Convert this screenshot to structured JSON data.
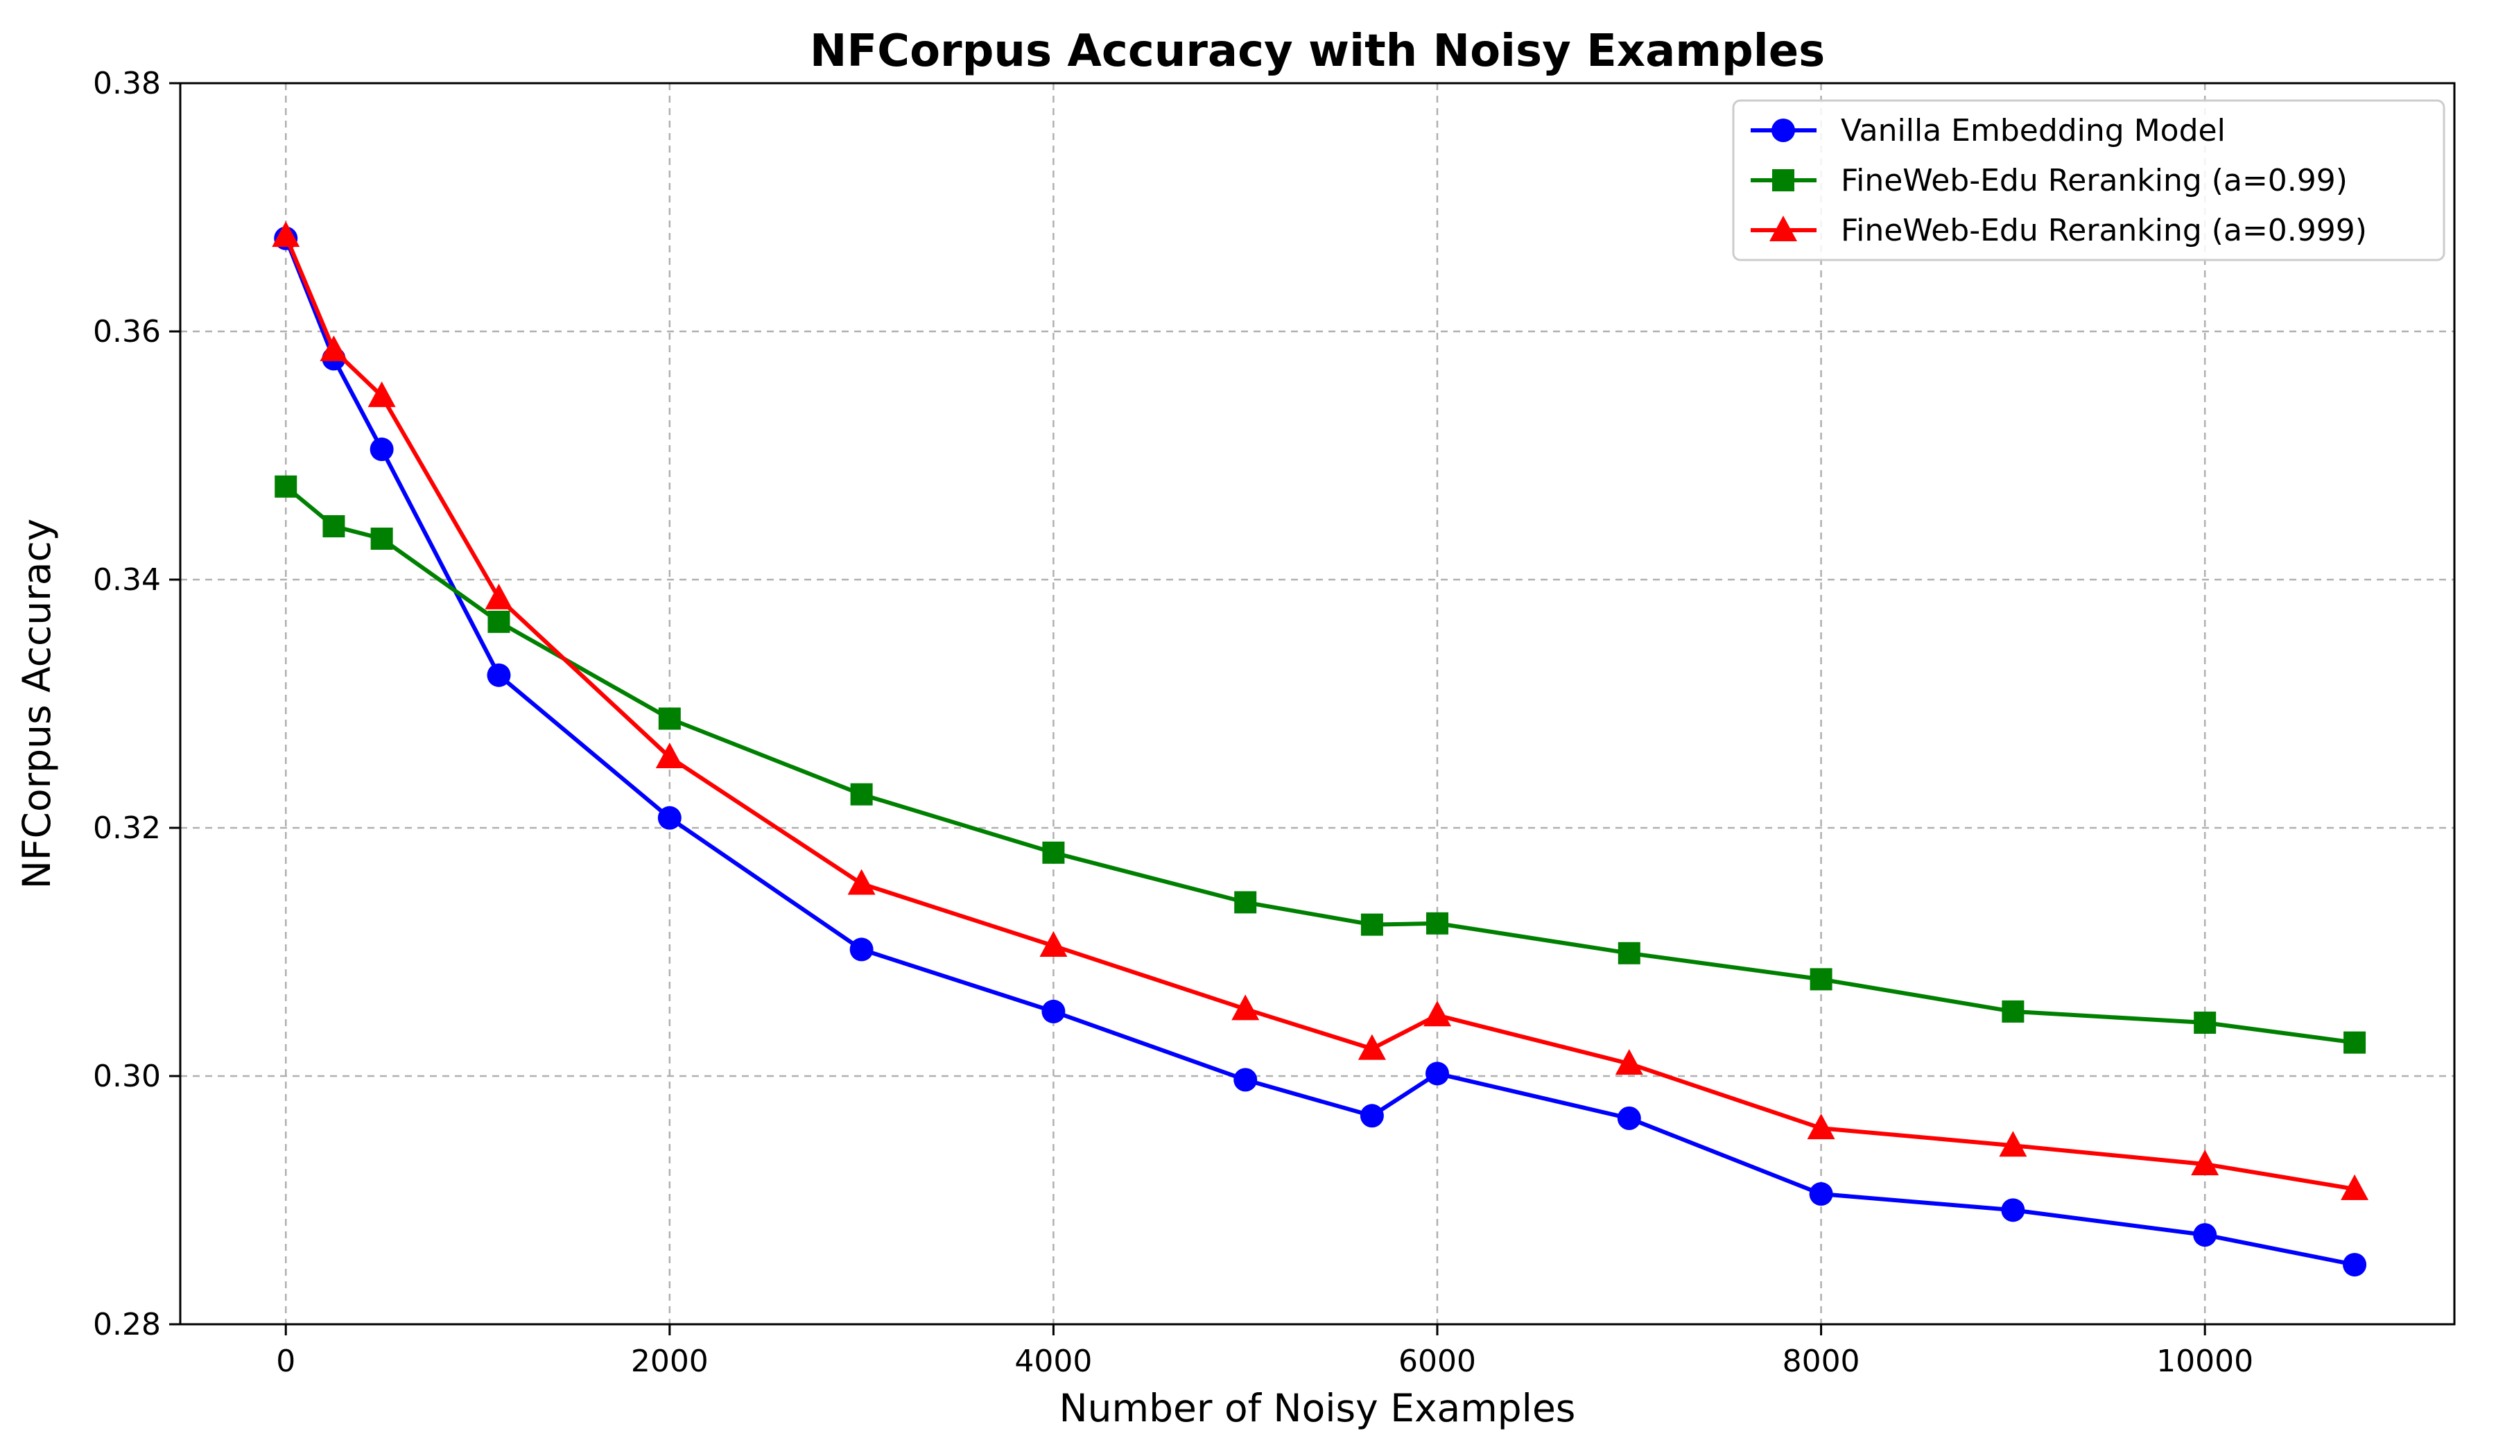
{
  "chart_data": {
    "type": "line",
    "title": "NFCorpus Accuracy with Noisy Examples",
    "xlabel": "Number of Noisy Examples",
    "ylabel": "NFCorpus Accuracy",
    "xlim": [
      -550,
      11300
    ],
    "ylim": [
      0.28,
      0.38
    ],
    "xticks": [
      0,
      2000,
      4000,
      6000,
      8000,
      10000
    ],
    "xtick_labels": [
      "0",
      "2000",
      "4000",
      "6000",
      "8000",
      "10000"
    ],
    "yticks": [
      0.28,
      0.3,
      0.32,
      0.34,
      0.36,
      0.38
    ],
    "ytick_labels": [
      "0.28",
      "0.30",
      "0.32",
      "0.34",
      "0.36",
      "0.38"
    ],
    "grid": true,
    "legend_position": "top-right",
    "series": [
      {
        "name": "Vanilla Embedding Model",
        "color": "#0000ff",
        "marker": "circle",
        "x": [
          0,
          250,
          500,
          1110,
          2000,
          3000,
          4000,
          5000,
          5660,
          6000,
          7000,
          8000,
          9000,
          10000,
          10780
        ],
        "values": [
          0.3675,
          0.3578,
          0.3505,
          0.3323,
          0.3208,
          0.3102,
          0.3052,
          0.2997,
          0.2968,
          0.3002,
          0.2966,
          0.2905,
          0.2892,
          0.2872,
          0.2848
        ]
      },
      {
        "name": "FineWeb-Edu Reranking (a=0.99)",
        "color": "#008000",
        "marker": "square",
        "x": [
          0,
          250,
          500,
          1110,
          2000,
          3000,
          4000,
          5000,
          5660,
          6000,
          7000,
          8000,
          9000,
          10000,
          10780
        ],
        "values": [
          0.3475,
          0.3443,
          0.3433,
          0.3366,
          0.3288,
          0.3227,
          0.318,
          0.314,
          0.3122,
          0.3123,
          0.3099,
          0.3078,
          0.3052,
          0.3043,
          0.3027
        ]
      },
      {
        "name": "FineWeb-Edu Reranking (a=0.999)",
        "color": "#ff0000",
        "marker": "triangle",
        "x": [
          0,
          250,
          500,
          1110,
          2000,
          3000,
          4000,
          5000,
          5660,
          6000,
          7000,
          8000,
          9000,
          10000,
          10780
        ],
        "values": [
          0.3677,
          0.3585,
          0.3548,
          0.3385,
          0.3257,
          0.3155,
          0.3105,
          0.3054,
          0.3022,
          0.3049,
          0.301,
          0.2958,
          0.2944,
          0.2929,
          0.2909
        ]
      }
    ]
  }
}
